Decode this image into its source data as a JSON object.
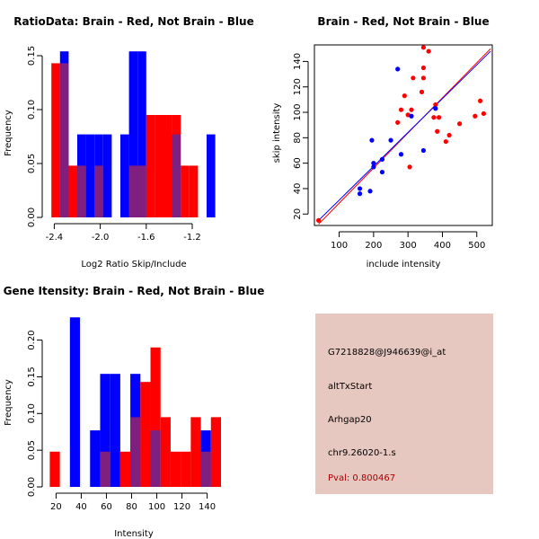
{
  "colors": {
    "red": "#ff0000",
    "blue": "#0000ff",
    "overlap": "#7f1f7f",
    "panel_bg": "#e6c8c0",
    "pval": "#aa0000"
  },
  "chart_data": [
    {
      "type": "bar",
      "id": "ratio",
      "title": "RatioData: Brain - Red, Not Brain - Blue",
      "xlabel": "Log2 Ratio Skip/Include",
      "ylabel": "Frequency",
      "xlim": [
        -2.45,
        -0.95
      ],
      "ylim": [
        0,
        0.16
      ],
      "xticks": [
        -2.4,
        -2.0,
        -1.6,
        -1.2
      ],
      "xtick_labels": [
        "-2.4",
        "-2.0",
        "-1.6",
        "-1.2"
      ],
      "yticks": [
        0.0,
        0.05,
        0.1,
        0.15
      ],
      "ytick_labels": [
        "0.00",
        "0.05",
        "0.10",
        "0.15"
      ],
      "bin_width": 0.075,
      "series": [
        {
          "name": "Brain",
          "color": "red",
          "bins": [
            [
              -2.425,
              0.143
            ],
            [
              -2.35,
              0.143
            ],
            [
              -2.275,
              0.048
            ],
            [
              -2.2,
              0.048
            ],
            [
              -2.05,
              0.048
            ],
            [
              -1.75,
              0.048
            ],
            [
              -1.675,
              0.048
            ],
            [
              -1.6,
              0.095
            ],
            [
              -1.525,
              0.095
            ],
            [
              -1.45,
              0.095
            ],
            [
              -1.375,
              0.095
            ],
            [
              -1.3,
              0.048
            ],
            [
              -1.225,
              0.048
            ]
          ]
        },
        {
          "name": "Not Brain",
          "color": "blue",
          "bins": [
            [
              -2.35,
              0.154
            ],
            [
              -2.2,
              0.077
            ],
            [
              -2.125,
              0.077
            ],
            [
              -2.05,
              0.077
            ],
            [
              -1.975,
              0.077
            ],
            [
              -1.825,
              0.077
            ],
            [
              -1.75,
              0.154
            ],
            [
              -1.675,
              0.154
            ],
            [
              -1.375,
              0.077
            ],
            [
              -1.075,
              0.077
            ]
          ]
        }
      ]
    },
    {
      "type": "scatter",
      "id": "scatter",
      "title": "Brain - Red, Not Brain - Blue",
      "xlabel": "include intensity",
      "ylabel": "skip intensity",
      "xlim": [
        28,
        545
      ],
      "ylim": [
        11,
        153
      ],
      "xticks": [
        100,
        200,
        300,
        400,
        500
      ],
      "xtick_labels": [
        "100",
        "200",
        "300",
        "400",
        "500"
      ],
      "yticks": [
        20,
        40,
        60,
        80,
        100,
        120,
        140
      ],
      "ytick_labels": [
        "20",
        "40",
        "60",
        "80",
        "100",
        "120",
        "140"
      ],
      "series": [
        {
          "name": "Brain",
          "color": "red",
          "points": [
            [
              40,
              15
            ],
            [
              270,
              92
            ],
            [
              280,
              102
            ],
            [
              290,
              113
            ],
            [
              300,
              98
            ],
            [
              305,
              57
            ],
            [
              310,
              102
            ],
            [
              315,
              127
            ],
            [
              340,
              116
            ],
            [
              345,
              127
            ],
            [
              345,
              135
            ],
            [
              345,
              151
            ],
            [
              360,
              148
            ],
            [
              375,
              96
            ],
            [
              380,
              106
            ],
            [
              385,
              85
            ],
            [
              390,
              96
            ],
            [
              410,
              77
            ],
            [
              420,
              82
            ],
            [
              450,
              91
            ],
            [
              495,
              97
            ],
            [
              510,
              109
            ],
            [
              520,
              99
            ]
          ],
          "fit": [
            [
              40,
              12
            ],
            [
              540,
              150
            ]
          ]
        },
        {
          "name": "Not Brain",
          "color": "blue",
          "points": [
            [
              160,
              36
            ],
            [
              160,
              40
            ],
            [
              190,
              38
            ],
            [
              195,
              78
            ],
            [
              200,
              57
            ],
            [
              200,
              60
            ],
            [
              225,
              53
            ],
            [
              225,
              63
            ],
            [
              250,
              78
            ],
            [
              270,
              134
            ],
            [
              280,
              67
            ],
            [
              310,
              97
            ],
            [
              345,
              70
            ],
            [
              380,
              103
            ]
          ],
          "fit": [
            [
              40,
              15
            ],
            [
              540,
              148
            ]
          ]
        }
      ]
    },
    {
      "type": "bar",
      "id": "intensity",
      "title": "Gene Itensity: Brain - Red, Not Brain - Blue",
      "xlabel": "Intensity",
      "ylabel": "Frequency",
      "xlim": [
        14,
        151
      ],
      "ylim": [
        0,
        0.235
      ],
      "xticks": [
        20,
        40,
        60,
        80,
        100,
        120,
        140
      ],
      "xtick_labels": [
        "20",
        "40",
        "60",
        "80",
        "100",
        "120",
        "140"
      ],
      "yticks": [
        0.0,
        0.05,
        0.1,
        0.15,
        0.2
      ],
      "ytick_labels": [
        "0.00",
        "0.05",
        "0.10",
        "0.15",
        "0.20"
      ],
      "bin_width": 8,
      "series": [
        {
          "name": "Brain",
          "color": "red",
          "bins": [
            [
              15,
              0.048
            ],
            [
              55,
              0.048
            ],
            [
              71,
              0.048
            ],
            [
              79,
              0.095
            ],
            [
              87,
              0.143
            ],
            [
              95,
              0.19
            ],
            [
              103,
              0.095
            ],
            [
              111,
              0.048
            ],
            [
              119,
              0.048
            ],
            [
              127,
              0.095
            ],
            [
              135,
              0.048
            ],
            [
              143,
              0.095
            ]
          ]
        },
        {
          "name": "Not Brain",
          "color": "blue",
          "bins": [
            [
              31,
              0.231
            ],
            [
              47,
              0.077
            ],
            [
              55,
              0.154
            ],
            [
              63,
              0.154
            ],
            [
              79,
              0.154
            ],
            [
              95,
              0.077
            ],
            [
              135,
              0.077
            ]
          ]
        }
      ]
    }
  ],
  "info": {
    "probe": "G7218828@J946639@i_at",
    "event": "altTxStart",
    "gene": "Arhgap20",
    "location": "chr9.26020-1.s",
    "pval": "Pval: 0.800467"
  }
}
